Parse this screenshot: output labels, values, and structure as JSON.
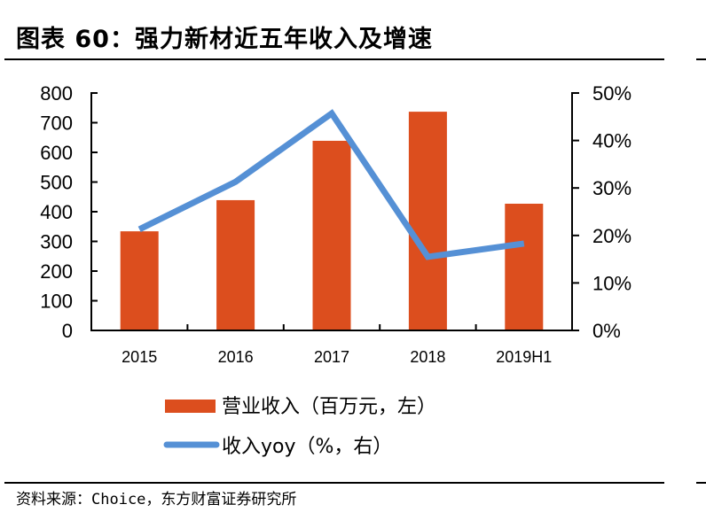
{
  "title": "图表 60：强力新材近五年收入及增速",
  "source": "资料来源：Choice，东方财富证券研究所",
  "colors": {
    "bar": "#DC4E1E",
    "line": "#5590D5",
    "axis": "#000000"
  },
  "chart_data": {
    "type": "bar+line",
    "categories": [
      "2015",
      "2016",
      "2017",
      "2018",
      "2019H1"
    ],
    "series": [
      {
        "name": "营业收入（百万元，左）",
        "type": "bar",
        "axis": "left",
        "values": [
          334,
          439,
          639,
          737,
          427
        ]
      },
      {
        "name": "收入yoy（%，右）",
        "type": "line",
        "axis": "right",
        "values": [
          21.3,
          31.3,
          45.7,
          15.5,
          18.3
        ]
      }
    ],
    "left_axis": {
      "ylim": [
        0,
        800
      ],
      "ticks": [
        "0",
        "100",
        "200",
        "300",
        "400",
        "500",
        "600",
        "700",
        "800"
      ]
    },
    "right_axis": {
      "ylim": [
        0,
        50
      ],
      "ticks": [
        "0%",
        "10%",
        "20%",
        "30%",
        "40%",
        "50%"
      ]
    },
    "legend": {
      "position": "bottom",
      "items": [
        "营业收入（百万元，左）",
        "收入yoy（%，右）"
      ]
    },
    "grid": false
  }
}
